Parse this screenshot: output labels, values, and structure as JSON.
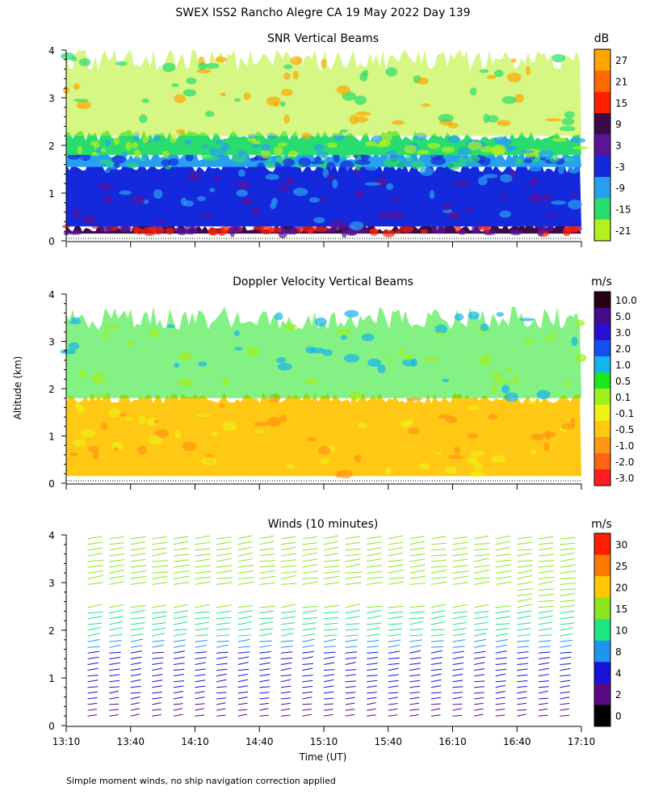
{
  "figure": {
    "title": "SWEX ISS2 Rancho Alegre CA  19 May 2022 Day 139",
    "ylabel": "Altitude (km)",
    "xlabel": "Time (UT)",
    "footnote": "Simple moment winds, no ship navigation correction applied",
    "x_ticks": [
      "13:10",
      "13:40",
      "14:10",
      "14:40",
      "15:10",
      "15:40",
      "16:10",
      "16:40",
      "17:10"
    ]
  },
  "chart_data": [
    {
      "type": "heatmap",
      "title": "SNR Vertical Beams",
      "x_range": [
        "13:10",
        "17:10"
      ],
      "ylim": [
        0,
        4
      ],
      "y_ticks": [
        0,
        1,
        2,
        3,
        4
      ],
      "colorbar": {
        "unit": "dB",
        "labels": [
          "27",
          "21",
          "15",
          "9",
          "3",
          "-3",
          "-9",
          "-15",
          "-21"
        ],
        "colors": [
          "#ffa500",
          "#ff6a00",
          "#ff2000",
          "#3c0a46",
          "#5a1498",
          "#1428dc",
          "#28a0f0",
          "#28dc6e",
          "#b4f01e"
        ]
      },
      "regions": [
        {
          "altitude_km": [
            0.15,
            0.3
          ],
          "snr_db": 9
        },
        {
          "altitude_km": [
            0.3,
            1.55
          ],
          "snr_db": -3
        },
        {
          "altitude_km": [
            1.55,
            1.8
          ],
          "snr_db": -9
        },
        {
          "altitude_km": [
            1.8,
            2.2
          ],
          "snr_db": -15
        },
        {
          "altitude_km": [
            2.2,
            3.9
          ],
          "snr_db": -21
        }
      ]
    },
    {
      "type": "heatmap",
      "title": "Doppler Velocity Vertical Beams",
      "x_range": [
        "13:10",
        "17:10"
      ],
      "ylim": [
        0,
        4
      ],
      "y_ticks": [
        0,
        1,
        2,
        3,
        4
      ],
      "colorbar": {
        "unit": "m/s",
        "labels": [
          "10.0",
          "5.0",
          "3.0",
          "2.0",
          "1.0",
          "0.5",
          "0.1",
          "-0.1",
          "-0.5",
          "-1.0",
          "-2.0",
          "-3.0"
        ],
        "colors": [
          "#280014",
          "#460a8c",
          "#2810d2",
          "#1450f0",
          "#14b4f0",
          "#1ee61e",
          "#a0f01e",
          "#f0f014",
          "#ffc814",
          "#ff9614",
          "#ff6414",
          "#ff1e1e"
        ]
      },
      "regions": [
        {
          "altitude_km": [
            0.15,
            1.8
          ],
          "velocity_ms": -0.5
        },
        {
          "altitude_km": [
            1.8,
            3.6
          ],
          "velocity_ms": 0.5
        }
      ]
    },
    {
      "type": "scatter",
      "title": "Winds (10 minutes)",
      "x_range": [
        "13:10",
        "17:10"
      ],
      "ylim": [
        0,
        4
      ],
      "y_ticks": [
        0,
        1,
        2,
        3,
        4
      ],
      "colorbar": {
        "unit": "m/s",
        "labels": [
          "30",
          "25",
          "20",
          "15",
          "10",
          "8",
          "4",
          "2",
          "0"
        ],
        "colors": [
          "#ff1e00",
          "#ff7800",
          "#ffc800",
          "#8ce61e",
          "#1ee682",
          "#1e96f0",
          "#1414dc",
          "#5a0a82",
          "#000000"
        ]
      },
      "times": [
        "13:20",
        "13:30",
        "13:40",
        "13:50",
        "14:00",
        "14:10",
        "14:20",
        "14:30",
        "14:40",
        "14:50",
        "15:00",
        "15:10",
        "15:20",
        "15:30",
        "15:40",
        "15:50",
        "16:00",
        "16:10",
        "16:20",
        "16:30",
        "16:40",
        "16:50",
        "17:00"
      ],
      "wind_profile": [
        {
          "altitude_km": 0.3,
          "speed_ms": 3
        },
        {
          "altitude_km": 0.8,
          "speed_ms": 5
        },
        {
          "altitude_km": 1.2,
          "speed_ms": 6
        },
        {
          "altitude_km": 1.7,
          "speed_ms": 9
        },
        {
          "altitude_km": 2.1,
          "speed_ms": 13
        },
        {
          "altitude_km": 2.6,
          "speed_ms": 16
        },
        {
          "altitude_km": 3.2,
          "speed_ms": 17
        },
        {
          "altitude_km": 3.7,
          "speed_ms": 15
        }
      ]
    }
  ]
}
